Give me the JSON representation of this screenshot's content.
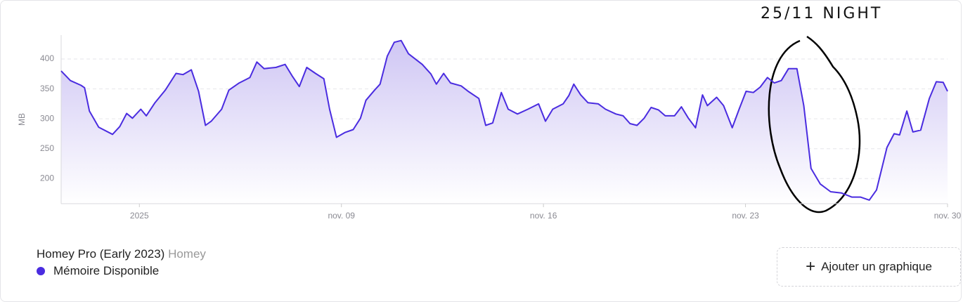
{
  "chart_data": {
    "type": "line",
    "fill": true,
    "ylabel": "MB",
    "annotation": "25/11 NIGHT",
    "x": [
      -0.71,
      -0.39,
      -0.02,
      0.1,
      0.27,
      0.59,
      1.07,
      1.32,
      1.56,
      1.76,
      2.05,
      2.24,
      2.54,
      2.9,
      3.27,
      3.51,
      3.8,
      4.05,
      4.29,
      4.49,
      4.85,
      5.1,
      5.46,
      5.83,
      6.07,
      6.32,
      6.73,
      7.05,
      7.29,
      7.54,
      7.8,
      8.1,
      8.39,
      8.59,
      8.83,
      9.12,
      9.41,
      9.66,
      9.85,
      10.15,
      10.34,
      10.59,
      10.83,
      11.07,
      11.32,
      11.8,
      12.1,
      12.29,
      12.54,
      12.78,
      13.15,
      13.39,
      13.76,
      14.0,
      14.24,
      14.54,
      14.78,
      15.1,
      15.46,
      15.83,
      16.07,
      16.32,
      16.68,
      16.88,
      17.05,
      17.29,
      17.54,
      17.9,
      18.15,
      18.51,
      18.76,
      19.0,
      19.24,
      19.49,
      19.73,
      19.98,
      20.22,
      20.54,
      20.78,
      21.02,
      21.27,
      21.51,
      21.68,
      22.0,
      22.24,
      22.54,
      22.78,
      23.02,
      23.27,
      23.51,
      23.76,
      24.0,
      24.24,
      24.49,
      24.78,
      25.02,
      25.27,
      25.59,
      25.95,
      26.32,
      26.68,
      26.98,
      27.29,
      27.54,
      27.9,
      28.15,
      28.34,
      28.59,
      28.8,
      29.07,
      29.37,
      29.61,
      29.85,
      30.0
    ],
    "series": [
      {
        "name": "Mémoire Disponible",
        "color": "#4a2ce0",
        "values": [
          380,
          364,
          356,
          352,
          313,
          286,
          274,
          287,
          309,
          301,
          316,
          305,
          327,
          348,
          376,
          374,
          382,
          346,
          289,
          296,
          316,
          348,
          360,
          369,
          395,
          384,
          386,
          391,
          372,
          354,
          386,
          376,
          367,
          316,
          269,
          277,
          282,
          301,
          331,
          348,
          358,
          405,
          428,
          431,
          409,
          391,
          375,
          358,
          376,
          360,
          355,
          346,
          334,
          289,
          293,
          344,
          316,
          308,
          316,
          325,
          296,
          316,
          325,
          339,
          358,
          340,
          327,
          325,
          316,
          308,
          305,
          292,
          289,
          301,
          319,
          315,
          305,
          305,
          320,
          301,
          285,
          340,
          322,
          336,
          322,
          285,
          316,
          346,
          344,
          353,
          369,
          360,
          364,
          384,
          384,
          322,
          217,
          191,
          178,
          176,
          169,
          169,
          164,
          181,
          252,
          275,
          273,
          313,
          278,
          281,
          334,
          362,
          361,
          346
        ]
      }
    ],
    "xlim": [
      -0.71,
      30.0
    ],
    "xticks": [
      {
        "value": 2,
        "label": "2025"
      },
      {
        "value": 9,
        "label": "nov. 09"
      },
      {
        "value": 16,
        "label": "nov. 16"
      },
      {
        "value": 23,
        "label": "nov. 23"
      },
      {
        "value": 30,
        "label": "nov. 30"
      }
    ],
    "ylim": [
      158,
      440
    ],
    "yticks": [
      200,
      250,
      300,
      350,
      400
    ],
    "grid": true
  },
  "legend": {
    "device": "Homey Pro (Early 2023)",
    "brand": "Homey"
  },
  "button": {
    "label": "Ajouter un graphique"
  }
}
